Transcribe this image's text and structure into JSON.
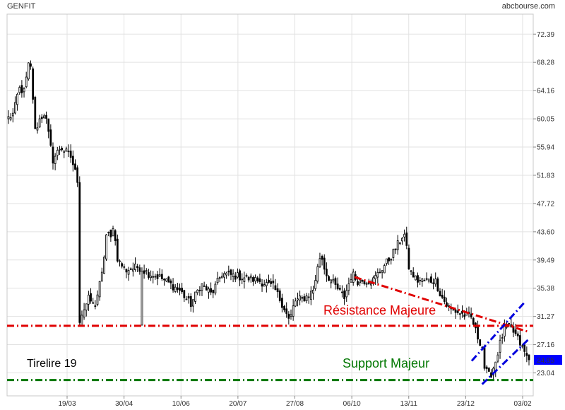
{
  "header": {
    "ticker": "GENFIT",
    "source": "abcbourse.com"
  },
  "chart_data": {
    "type": "candlestick",
    "title": "GENFIT",
    "y_ticks": [
      72.39,
      68.28,
      64.16,
      60.05,
      55.94,
      51.83,
      47.72,
      43.6,
      39.49,
      35.38,
      31.27,
      27.16,
      23.04
    ],
    "ylim": [
      19.7,
      75.3
    ],
    "x_ticks": [
      "19/03",
      "30/04",
      "10/06",
      "20/07",
      "27/08",
      "06/10",
      "13/11",
      "23/12",
      "03/02"
    ],
    "last_price": {
      "label": "24.95",
      "value": 24.95,
      "color": "#0000ff"
    },
    "grid": true,
    "colors": {
      "up": "#ffffff",
      "down": "#000000",
      "resistance": "#e00000",
      "support": "#007700",
      "channel": "#0000dd"
    },
    "annotations": {
      "resistance": {
        "label": "Résistance Majeure",
        "value": 29.9
      },
      "support": {
        "label": "Support Majeur",
        "value": 22.0
      },
      "tirelire": {
        "label": "Tirelire 19"
      }
    },
    "trend_lines": {
      "descending_resistance": {
        "from": [
          0.665,
          37.0
        ],
        "to": [
          1.0,
          29.0
        ]
      },
      "channel_lower": {
        "from": [
          0.91,
          21.4
        ],
        "to": [
          1.0,
          28.0
        ]
      },
      "channel_upper": {
        "from": [
          0.89,
          24.8
        ],
        "to": [
          0.99,
          33.2
        ]
      }
    },
    "anchors": [
      [
        0.0,
        60.2
      ],
      [
        0.01,
        60.8
      ],
      [
        0.02,
        64.5
      ],
      [
        0.03,
        64.0
      ],
      [
        0.04,
        68.5
      ],
      [
        0.045,
        66.5
      ],
      [
        0.05,
        58.0
      ],
      [
        0.06,
        60.0
      ],
      [
        0.07,
        61.0
      ],
      [
        0.085,
        54.0
      ],
      [
        0.1,
        56.0
      ],
      [
        0.12,
        54.5
      ],
      [
        0.135,
        50.5
      ],
      [
        0.137,
        28.0
      ],
      [
        0.14,
        31.5
      ],
      [
        0.155,
        34.0
      ],
      [
        0.165,
        32.5
      ],
      [
        0.18,
        37.5
      ],
      [
        0.19,
        44.5
      ],
      [
        0.195,
        41.5
      ],
      [
        0.2,
        45.0
      ],
      [
        0.21,
        39.5
      ],
      [
        0.225,
        38.0
      ],
      [
        0.25,
        38.5
      ],
      [
        0.27,
        37.5
      ],
      [
        0.29,
        37.0
      ],
      [
        0.31,
        36.0
      ],
      [
        0.33,
        35.0
      ],
      [
        0.35,
        33.0
      ],
      [
        0.37,
        36.0
      ],
      [
        0.39,
        34.5
      ],
      [
        0.41,
        37.5
      ],
      [
        0.45,
        37.0
      ],
      [
        0.48,
        36.5
      ],
      [
        0.51,
        35.5
      ],
      [
        0.53,
        32.5
      ],
      [
        0.54,
        30.5
      ],
      [
        0.55,
        33.5
      ],
      [
        0.57,
        34.0
      ],
      [
        0.585,
        35.0
      ],
      [
        0.6,
        40.5
      ],
      [
        0.61,
        37.5
      ],
      [
        0.625,
        36.0
      ],
      [
        0.64,
        34.5
      ],
      [
        0.645,
        34.0
      ],
      [
        0.66,
        37.5
      ],
      [
        0.67,
        36.5
      ],
      [
        0.685,
        36.5
      ],
      [
        0.7,
        36.5
      ],
      [
        0.72,
        38.5
      ],
      [
        0.735,
        40.0
      ],
      [
        0.75,
        42.0
      ],
      [
        0.76,
        43.5
      ],
      [
        0.765,
        41.0
      ],
      [
        0.77,
        38.0
      ],
      [
        0.785,
        36.5
      ],
      [
        0.8,
        36.5
      ],
      [
        0.82,
        36.5
      ],
      [
        0.83,
        34.5
      ],
      [
        0.845,
        32.5
      ],
      [
        0.86,
        32.0
      ],
      [
        0.875,
        31.5
      ],
      [
        0.89,
        31.0
      ],
      [
        0.9,
        28.5
      ],
      [
        0.91,
        27.0
      ],
      [
        0.915,
        23.5
      ],
      [
        0.925,
        22.5
      ],
      [
        0.935,
        24.5
      ],
      [
        0.945,
        27.5
      ],
      [
        0.955,
        30.0
      ],
      [
        0.965,
        29.5
      ],
      [
        0.975,
        28.5
      ],
      [
        0.985,
        27.0
      ],
      [
        0.995,
        25.5
      ],
      [
        1.0,
        24.95
      ]
    ]
  }
}
